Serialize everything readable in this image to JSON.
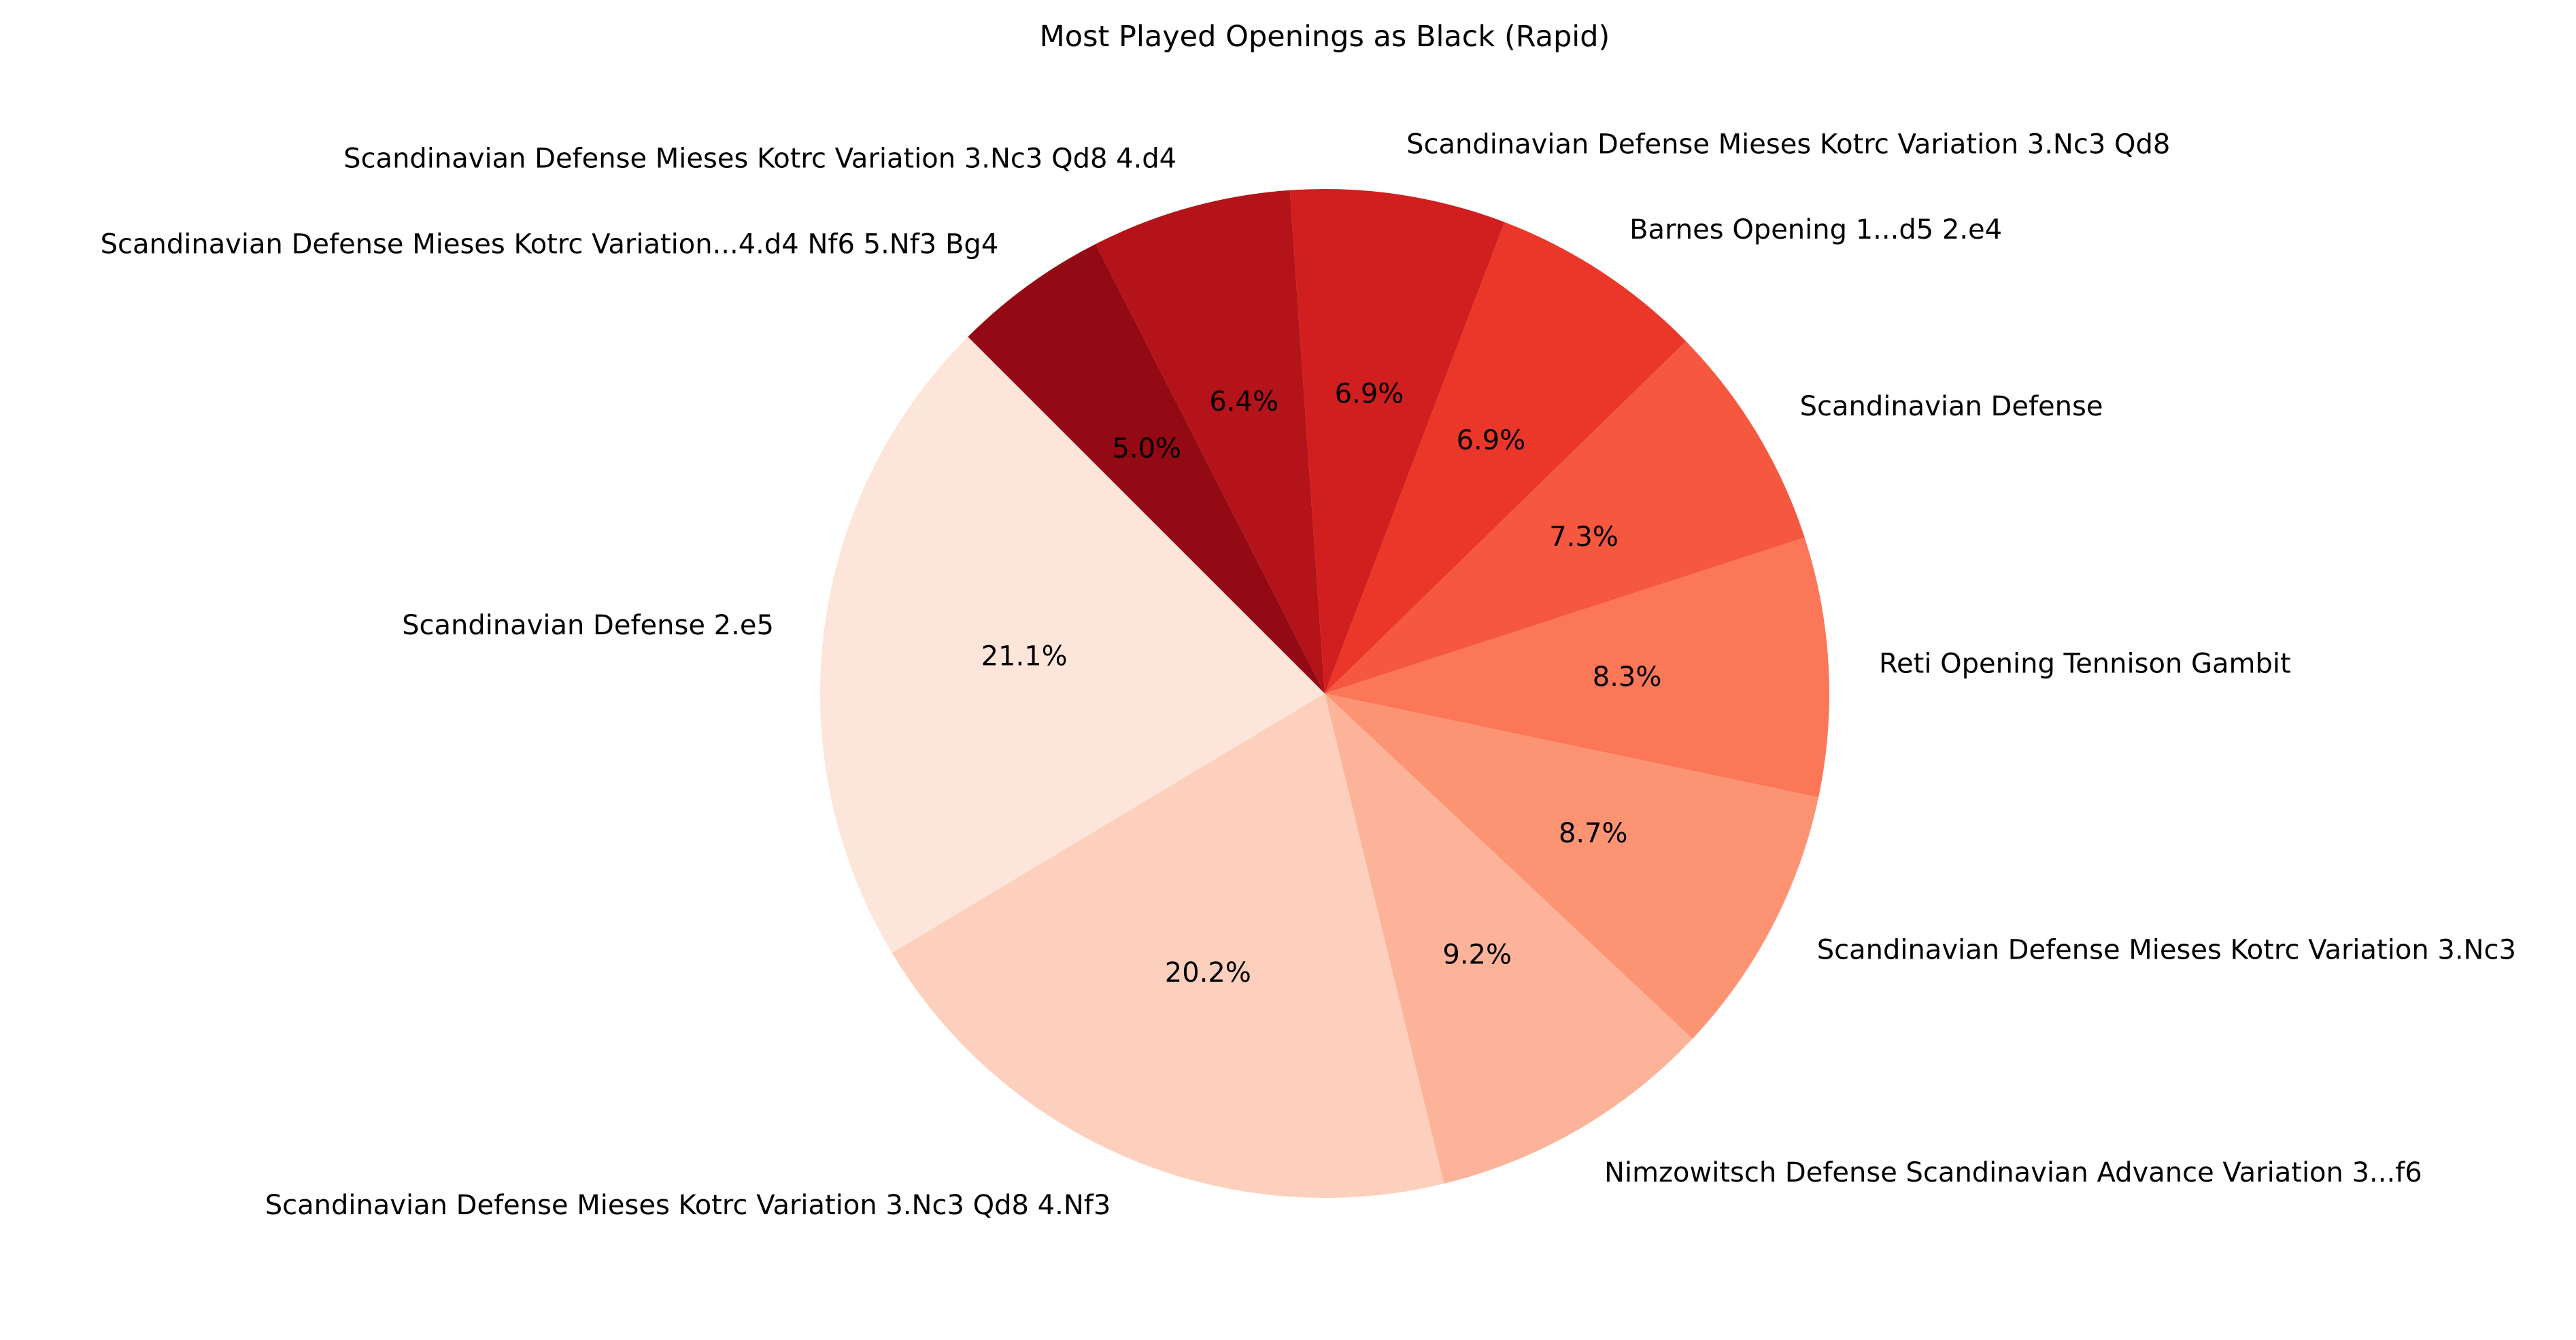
{
  "chart_data": {
    "type": "pie",
    "title": "Most Played Openings as Black (Rapid)",
    "start_angle_deg": 135,
    "direction": "counterclockwise",
    "slices": [
      {
        "label": "Scandinavian Defense 2.e5",
        "percent_label": "21.1%",
        "value": 21.1,
        "color": "#fee5d9"
      },
      {
        "label": "Scandinavian Defense Mieses Kotrc Variation 3.Nc3 Qd8 4.Nf3",
        "percent_label": "20.2%",
        "value": 20.2,
        "color": "#fcd0bc"
      },
      {
        "label": "Nimzowitsch Defense Scandinavian Advance Variation 3...f6",
        "percent_label": "9.2%",
        "value": 9.2,
        "color": "#fcb399"
      },
      {
        "label": "Scandinavian Defense Mieses Kotrc Variation 3.Nc3",
        "percent_label": "8.7%",
        "value": 8.7,
        "color": "#fc9474"
      },
      {
        "label": "Reti Opening Tennison Gambit",
        "percent_label": "8.3%",
        "value": 8.3,
        "color": "#fb7757"
      },
      {
        "label": "Scandinavian Defense",
        "percent_label": "7.3%",
        "value": 7.3,
        "color": "#f5573f"
      },
      {
        "label": "Barnes Opening 1...d5 2.e4",
        "percent_label": "6.9%",
        "value": 6.9,
        "color": "#ea372a"
      },
      {
        "label": "Scandinavian Defense Mieses Kotrc Variation 3.Nc3 Qd8",
        "percent_label": "6.9%",
        "value": 6.9,
        "color": "#d11e1f"
      },
      {
        "label": "Scandinavian Defense Mieses Kotrc Variation 3.Nc3 Qd8 4.d4",
        "percent_label": "6.4%",
        "value": 6.4,
        "color": "#b41319"
      },
      {
        "label": "Scandinavian Defense Mieses Kotrc Variation...4.d4 Nf6 5.Nf3 Bg4",
        "percent_label": "5.0%",
        "value": 5.0,
        "color": "#930a14"
      }
    ]
  }
}
